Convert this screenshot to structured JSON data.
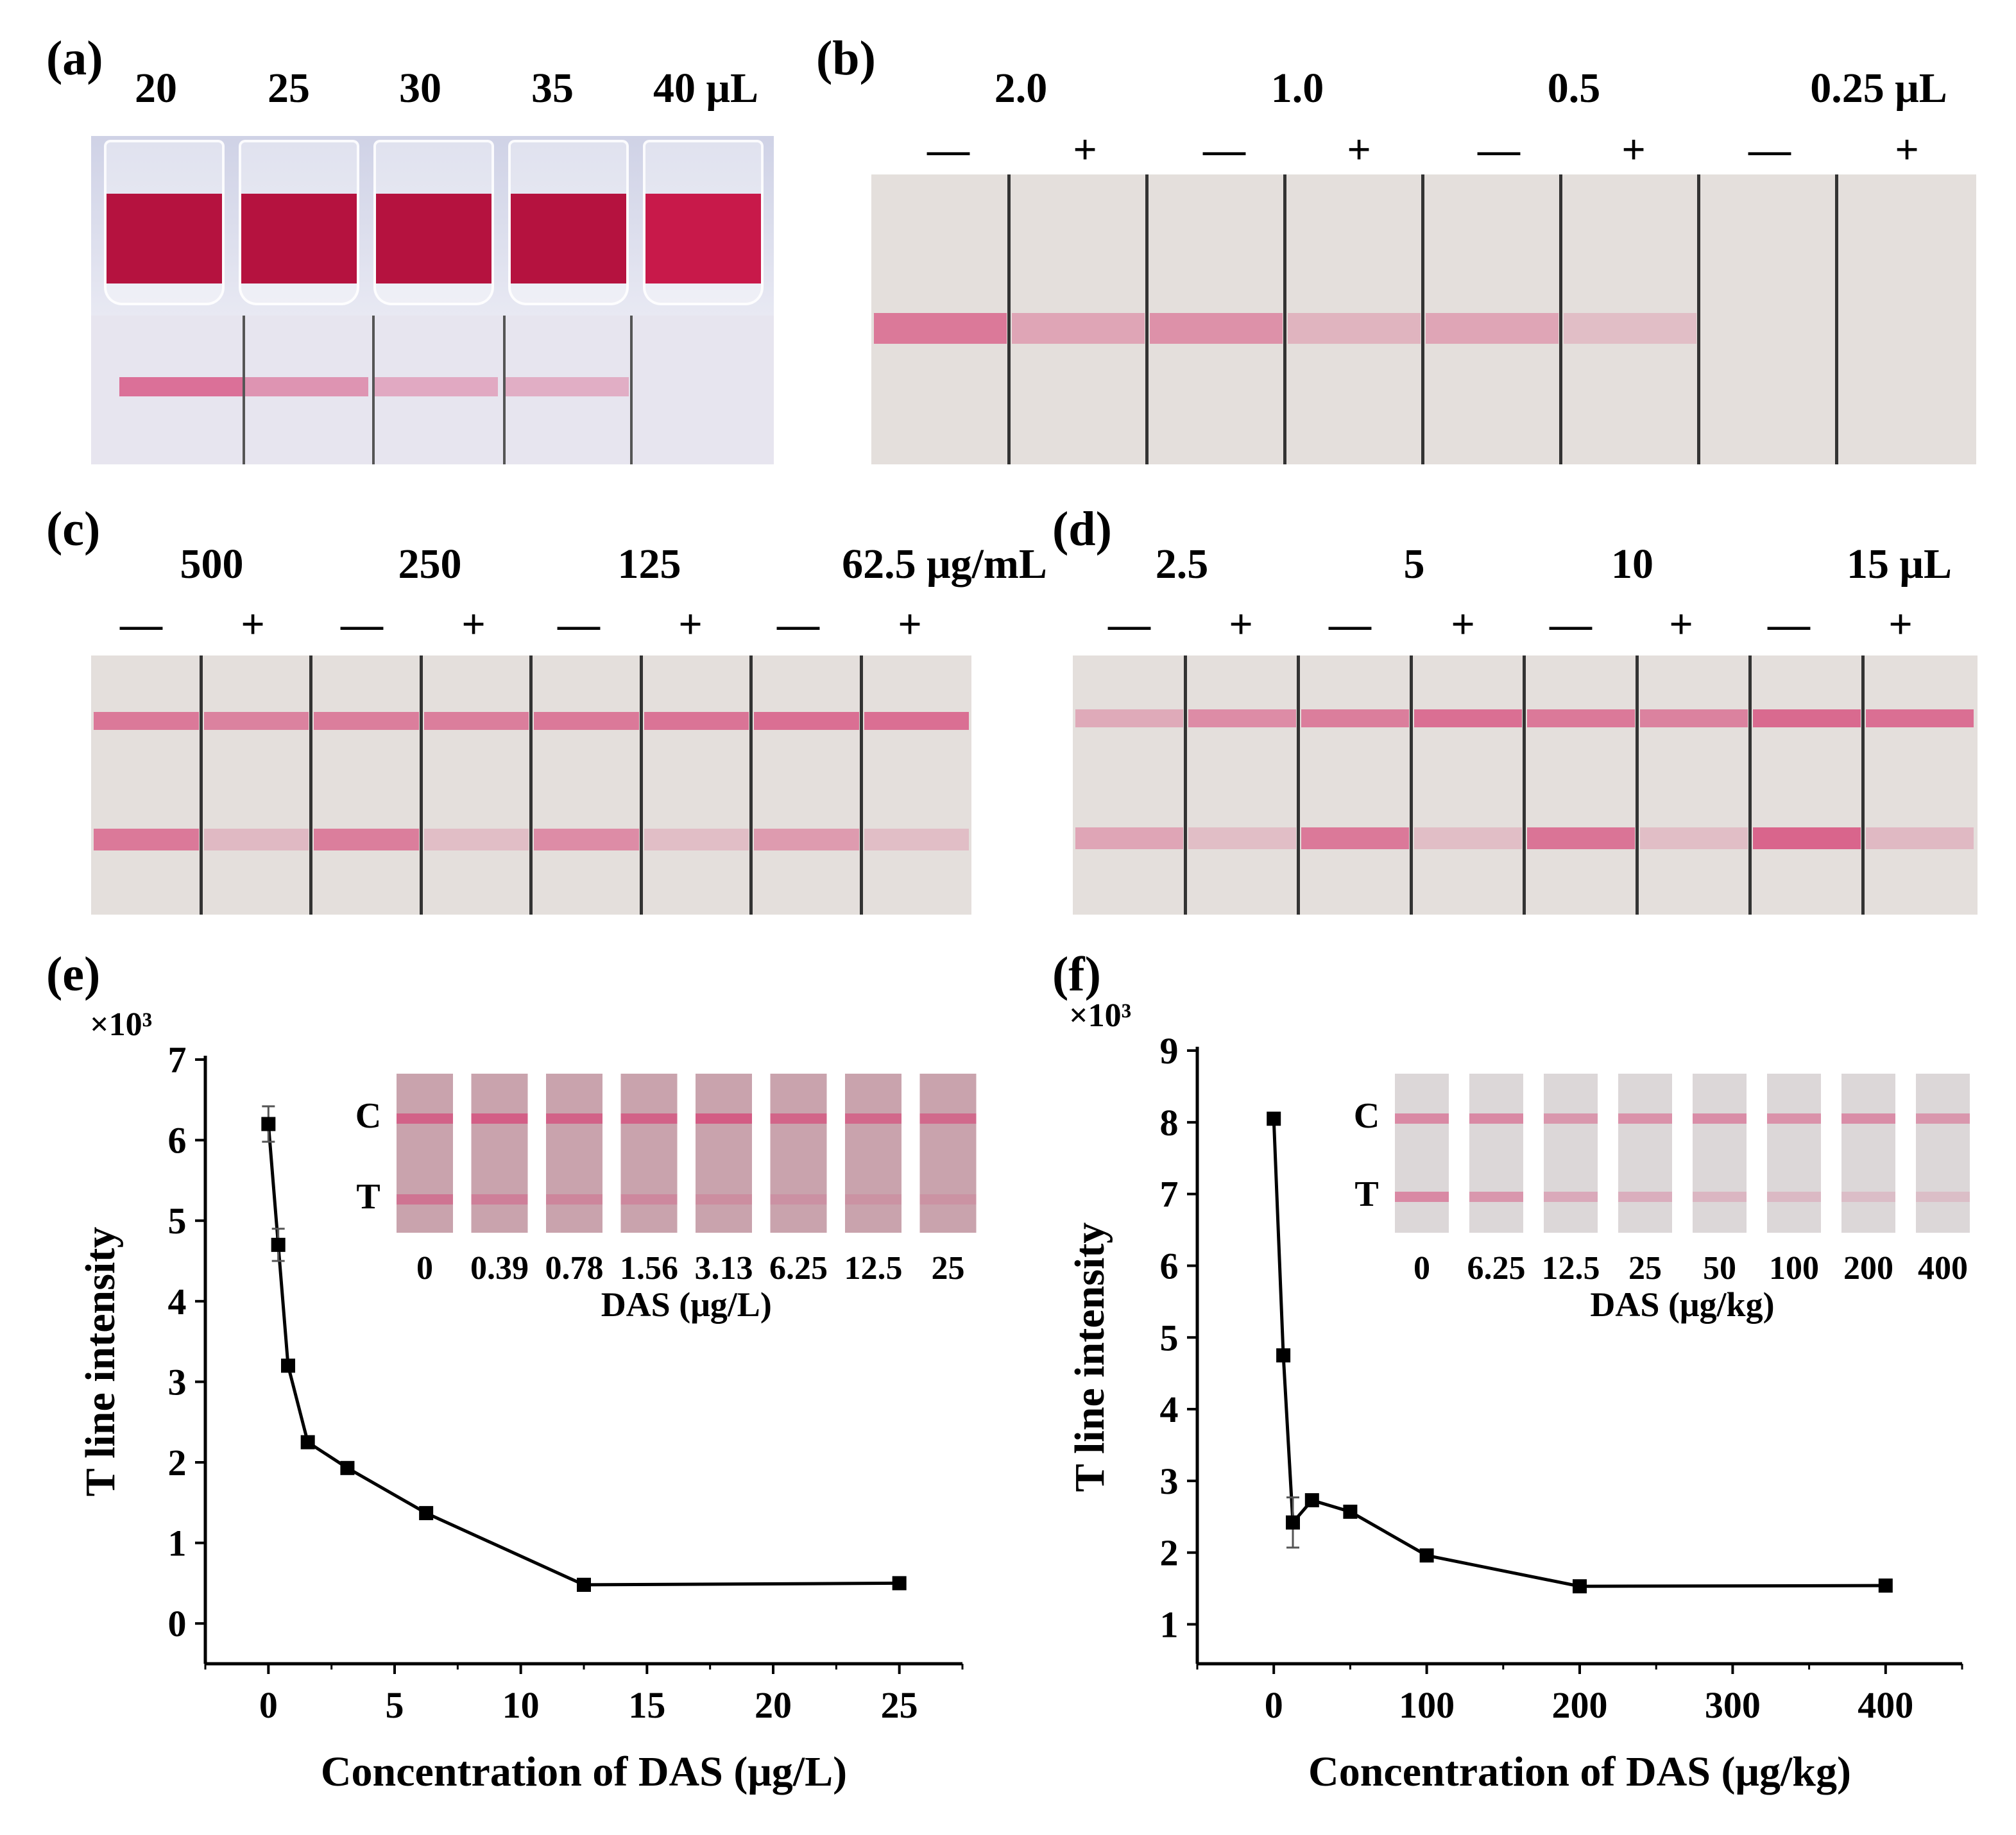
{
  "panel_a": {
    "label": "(a)",
    "volumes": [
      "20",
      "25",
      "30",
      "35",
      "40 μL"
    ],
    "t_intensity": [
      0.9,
      0.55,
      0.35,
      0.3,
      0.0
    ]
  },
  "panel_b": {
    "label": "(b)",
    "groups": [
      "2.0",
      "1.0",
      "0.5",
      "0.25 μL"
    ],
    "signs": [
      "—",
      "+",
      "—",
      "+",
      "—",
      "+",
      "—",
      "+"
    ],
    "line_intensity": [
      0.8,
      0.35,
      0.55,
      0.2,
      0.35,
      0.1,
      0.0,
      0.0
    ]
  },
  "panel_c": {
    "label": "(c)",
    "groups": [
      "500",
      "250",
      "125",
      "62.5 μg/mL"
    ],
    "signs": [
      "—",
      "+",
      "—",
      "+",
      "—",
      "+",
      "—",
      "+"
    ],
    "c_intensity": [
      0.8,
      0.7,
      0.75,
      0.75,
      0.8,
      0.85,
      0.9,
      0.9
    ],
    "t_intensity": [
      0.8,
      0.15,
      0.75,
      0.1,
      0.6,
      0.1,
      0.45,
      0.1
    ]
  },
  "panel_d": {
    "label": "(d)",
    "groups": [
      "2.5",
      "5",
      "10",
      "15 μL"
    ],
    "signs": [
      "—",
      "+",
      "—",
      "+",
      "—",
      "+",
      "—",
      "+"
    ],
    "c_intensity": [
      0.3,
      0.6,
      0.75,
      0.9,
      0.8,
      0.7,
      0.95,
      0.9
    ],
    "t_intensity": [
      0.35,
      0.1,
      0.8,
      0.1,
      0.85,
      0.1,
      1.0,
      0.15
    ]
  },
  "chart_data": [
    {
      "panel": "(e)",
      "type": "line",
      "multiplier": "×10³",
      "xlabel": "Concentration of DAS (μg/L)",
      "ylabel": "T line intensity",
      "xlim": [
        -2.5,
        27.5
      ],
      "ylim": [
        -0.5,
        7
      ],
      "xticks": [
        0,
        5,
        10,
        15,
        20,
        25
      ],
      "yticks": [
        0,
        1,
        2,
        3,
        4,
        5,
        6,
        7
      ],
      "x": [
        0,
        0.39,
        0.78,
        1.56,
        3.13,
        6.25,
        12.5,
        25
      ],
      "y": [
        6.2,
        4.7,
        3.2,
        2.25,
        1.93,
        1.37,
        0.48,
        0.5
      ],
      "err": [
        0.22,
        0.2,
        0.05,
        0.05,
        0.04,
        0.04,
        0.04,
        0.04
      ],
      "inset": {
        "row_labels": [
          "C",
          "T"
        ],
        "concentrations": [
          "0",
          "0.39",
          "0.78",
          "1.56",
          "3.13",
          "6.25",
          "12.5",
          "25"
        ],
        "xlabel": "DAS (μg/L)",
        "c_intensity": [
          0.85,
          0.9,
          0.85,
          0.85,
          0.95,
          0.8,
          0.75,
          0.7
        ],
        "t_intensity": [
          0.55,
          0.35,
          0.25,
          0.2,
          0.12,
          0.06,
          0.03,
          0.03
        ]
      }
    },
    {
      "panel": "(f)",
      "type": "line",
      "multiplier": "×10³",
      "xlabel": "Concentration of DAS (μg/kg)",
      "ylabel": "T line intensity",
      "xlim": [
        -50,
        450
      ],
      "ylim": [
        0.45,
        9
      ],
      "xticks": [
        0,
        100,
        200,
        300,
        400
      ],
      "yticks": [
        1,
        2,
        3,
        4,
        5,
        6,
        7,
        8,
        9
      ],
      "x": [
        0,
        6.25,
        12.5,
        25,
        50,
        100,
        200,
        400
      ],
      "y": [
        8.05,
        4.75,
        2.42,
        2.73,
        2.57,
        1.96,
        1.53,
        1.54
      ],
      "err": [
        0.08,
        0.05,
        0.35,
        0.06,
        0.05,
        0.08,
        0.08,
        0.03
      ],
      "inset": {
        "row_labels": [
          "C",
          "T"
        ],
        "concentrations": [
          "0",
          "6.25",
          "12.5",
          "25",
          "50",
          "100",
          "200",
          "400"
        ],
        "xlabel": "DAS (μg/kg)",
        "c_intensity": [
          0.6,
          0.6,
          0.45,
          0.5,
          0.55,
          0.5,
          0.55,
          0.45
        ],
        "t_intensity": [
          0.6,
          0.45,
          0.25,
          0.2,
          0.12,
          0.08,
          0.05,
          0.03
        ]
      }
    }
  ]
}
